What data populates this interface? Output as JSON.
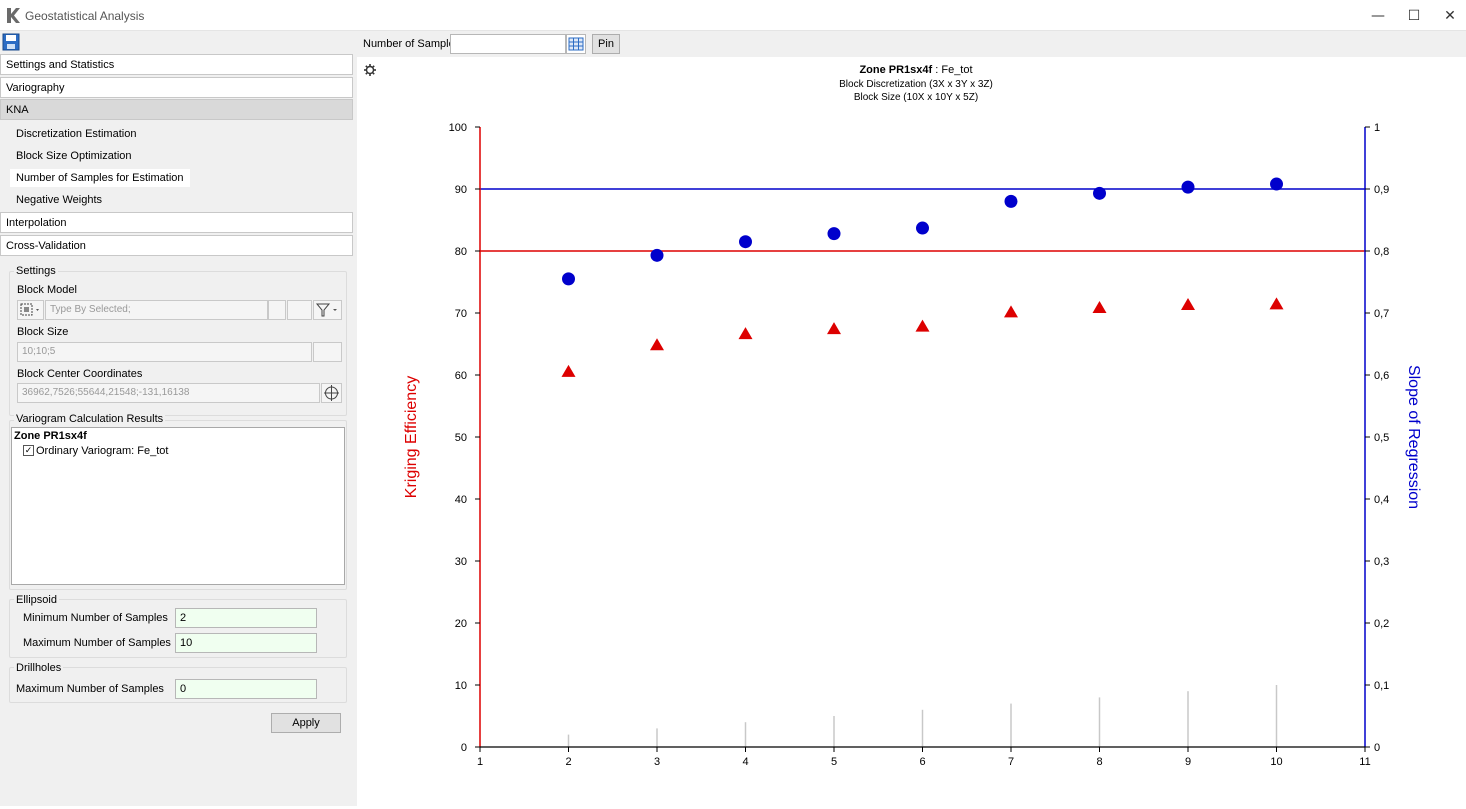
{
  "window": {
    "title": "Geostatistical Analysis",
    "minimize": "—",
    "maximize": "☐",
    "close": "✕"
  },
  "left": {
    "accordion": [
      {
        "label": "Settings and Statistics"
      },
      {
        "label": "Variography"
      },
      {
        "label": "KNA"
      },
      {
        "label": "Interpolation"
      },
      {
        "label": "Cross-Validation"
      }
    ],
    "kna_items": [
      {
        "label": "Discretization Estimation"
      },
      {
        "label": "Block Size Optimization"
      },
      {
        "label": "Number of Samples for Estimation"
      },
      {
        "label": "Negative Weights"
      }
    ],
    "settings": {
      "title": "Settings",
      "block_model_label": "Block Model",
      "block_model_placeholder": "Type By Selected;",
      "block_size_label": "Block Size",
      "block_size_value": "10;10;5",
      "center_label": "Block Center Coordinates",
      "center_value": "36962,7526;55644,21548;-131,16138"
    },
    "variogram": {
      "title": "Variogram Calculation Results",
      "zone": "Zone PR1sx4f",
      "item": "Ordinary Variogram: Fe_tot"
    },
    "ellipsoid": {
      "title": "Ellipsoid",
      "min_label": "Minimum Number of Samples",
      "min_value": "2",
      "max_label": "Maximum Number of Samples",
      "max_value": "10"
    },
    "drillholes": {
      "title": "Drillholes",
      "max_label": "Maximum Number of Samples",
      "max_value": "0"
    },
    "apply_label": "Apply"
  },
  "toolbar": {
    "samples_label": "Number of Samples",
    "samples_value": "",
    "pin_label": "Pin"
  },
  "chart_data": {
    "type": "scatter",
    "title_bold": "Zone PR1sx4f",
    "title_rest": " : Fe_tot",
    "subtitle1": "Block Discretization (3X x 3Y x 3Z)",
    "subtitle2": "Block Size (10X x 10Y x 5Z)",
    "ylabel": "Kriging Efficiency",
    "y2label": "Slope of Regression",
    "xlim": [
      1,
      11
    ],
    "ylim": [
      0,
      100
    ],
    "y2lim": [
      0,
      1
    ],
    "xticks": [
      "1",
      "2",
      "3",
      "4",
      "5",
      "6",
      "7",
      "8",
      "9",
      "10",
      "11"
    ],
    "yticks": [
      "0",
      "10",
      "20",
      "30",
      "40",
      "50",
      "60",
      "70",
      "80",
      "90",
      "100"
    ],
    "y2ticks": [
      "0",
      "0,1",
      "0,2",
      "0,3",
      "0,4",
      "0,5",
      "0,6",
      "0,7",
      "0,8",
      "0,9",
      "1"
    ],
    "ref_kriging": 80,
    "ref_slope": 0.9,
    "kriging_color": "#dd0000",
    "slope_color": "#0000cc",
    "x": [
      2,
      3,
      4,
      5,
      6,
      7,
      8,
      9,
      10
    ],
    "kriging_efficiency": [
      60.5,
      64.8,
      66.6,
      67.4,
      67.8,
      70.1,
      70.8,
      71.3,
      71.4
    ],
    "slope_of_regression": [
      0.755,
      0.793,
      0.815,
      0.828,
      0.837,
      0.88,
      0.893,
      0.903,
      0.908
    ],
    "sample_count_bars": [
      2,
      3,
      4,
      5,
      6,
      7,
      8,
      9,
      10
    ]
  }
}
